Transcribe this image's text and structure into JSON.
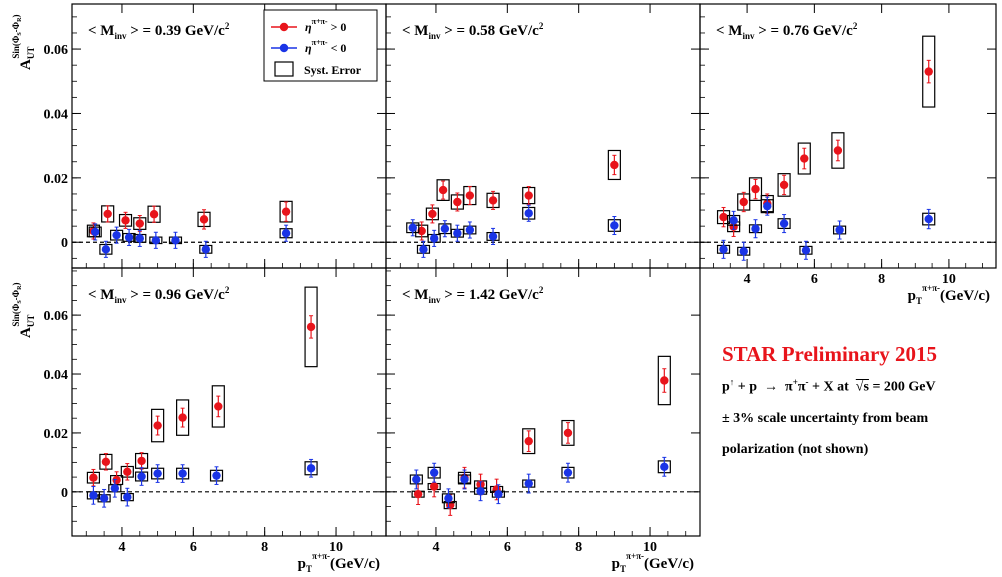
{
  "colors": {
    "positive": "#e8141b",
    "negative": "#1a34e6",
    "box": "#000000",
    "preliminary": "#e8141b"
  },
  "legend": {
    "pos_label": "η^{π+π-} > 0",
    "neg_label": "η^{π+π-} < 0",
    "syst_label": "Syst. Error"
  },
  "ylabel": "A_UT^{Sin(Φ_S-Φ_R)}",
  "xlabel": "p_T^{π+π-}(GeV/c)",
  "info": {
    "title": "STAR Preliminary 2015",
    "reaction": "p↑ + p → π+π- + X at √s = 200 GeV",
    "scale": "± 3% scale uncertainty from beam",
    "polarization": "polarization (not shown)"
  },
  "chart_data": [
    {
      "type": "scatter",
      "title": "< M_inv > = 0.39 GeV/c²",
      "xlim": [
        2.6,
        11.4
      ],
      "ylim": [
        -0.008,
        0.074
      ],
      "xticks": [
        4,
        6,
        8,
        10
      ],
      "yticks": [
        0,
        0.02,
        0.04,
        0.06
      ],
      "series": [
        {
          "name": "η^{π+π-} > 0",
          "x": [
            3.2,
            3.6,
            4.1,
            4.5,
            4.9,
            6.3,
            8.6
          ],
          "y": [
            0.0035,
            0.0088,
            0.0068,
            0.0058,
            0.0087,
            0.0071,
            0.0095
          ],
          "err": [
            0.0025,
            0.0025,
            0.0025,
            0.0025,
            0.0025,
            0.003,
            0.003
          ],
          "syst": [
            0.0018,
            0.0025,
            0.0018,
            0.0018,
            0.0025,
            0.0022,
            0.0032
          ]
        },
        {
          "name": "η^{π+π-} < 0",
          "x": [
            3.25,
            3.55,
            3.85,
            4.2,
            4.5,
            4.95,
            5.5,
            6.35,
            8.6
          ],
          "y": [
            0.0032,
            -0.0022,
            0.0022,
            0.0015,
            0.0012,
            0.0006,
            0.0006,
            -0.0022,
            0.0028
          ],
          "err": [
            0.0025,
            0.0025,
            0.0025,
            0.0025,
            0.0025,
            0.0025,
            0.0025,
            0.0025,
            0.0025
          ],
          "syst": [
            0.0015,
            0.0015,
            0.0015,
            0.0012,
            0.0012,
            0.001,
            0.001,
            0.0012,
            0.0014
          ]
        }
      ]
    },
    {
      "type": "scatter",
      "title": "< M_inv > = 0.58 GeV/c²",
      "xlim": [
        2.6,
        11.4
      ],
      "ylim": [
        -0.008,
        0.074
      ],
      "xticks": [
        4,
        6,
        8,
        10
      ],
      "yticks": [
        0,
        0.02,
        0.04,
        0.06
      ],
      "series": [
        {
          "name": "η^{π+π-} > 0",
          "x": [
            3.6,
            3.9,
            4.2,
            4.6,
            4.95,
            5.6,
            6.6,
            9.0
          ],
          "y": [
            0.0035,
            0.0088,
            0.0162,
            0.0125,
            0.0145,
            0.013,
            0.0145,
            0.024
          ],
          "err": [
            0.0028,
            0.0028,
            0.0028,
            0.0028,
            0.0028,
            0.0028,
            0.0028,
            0.003
          ],
          "syst": [
            0.0018,
            0.0018,
            0.0032,
            0.0022,
            0.0028,
            0.0022,
            0.0025,
            0.0045
          ]
        },
        {
          "name": "η^{π+π-} < 0",
          "x": [
            3.35,
            3.65,
            3.95,
            4.25,
            4.6,
            4.95,
            5.6,
            6.6,
            9.0
          ],
          "y": [
            0.0045,
            -0.0022,
            0.0012,
            0.0042,
            0.0028,
            0.0038,
            0.0018,
            0.009,
            0.0052
          ],
          "err": [
            0.0025,
            0.0025,
            0.0025,
            0.0025,
            0.0025,
            0.0025,
            0.0025,
            0.0025,
            0.0028
          ],
          "syst": [
            0.0015,
            0.0012,
            0.0012,
            0.0015,
            0.0012,
            0.0012,
            0.0012,
            0.0018,
            0.0018
          ]
        }
      ]
    },
    {
      "type": "scatter",
      "title": "< M_inv > = 0.76 GeV/c²",
      "xlim": [
        2.6,
        11.4
      ],
      "ylim": [
        -0.008,
        0.074
      ],
      "xticks": [
        4,
        6,
        8,
        10
      ],
      "yticks": [
        0,
        0.02,
        0.04,
        0.06
      ],
      "xlabel": "p_T^{π+π-}(GeV/c)",
      "series": [
        {
          "name": "η^{π+π-} > 0",
          "x": [
            3.3,
            3.6,
            3.9,
            4.25,
            4.6,
            5.1,
            5.7,
            6.7,
            9.4
          ],
          "y": [
            0.0078,
            0.0048,
            0.0125,
            0.0165,
            0.012,
            0.0178,
            0.026,
            0.0285,
            0.053
          ],
          "err": [
            0.003,
            0.003,
            0.003,
            0.003,
            0.003,
            0.003,
            0.0032,
            0.0032,
            0.0035
          ],
          "syst": [
            0.002,
            0.0015,
            0.0025,
            0.0035,
            0.0025,
            0.0035,
            0.0048,
            0.0055,
            0.011
          ]
        },
        {
          "name": "η^{π+π-} < 0",
          "x": [
            3.3,
            3.6,
            3.9,
            4.25,
            4.6,
            5.1,
            5.75,
            6.75,
            9.4
          ],
          "y": [
            -0.0022,
            0.0068,
            -0.0028,
            0.0042,
            0.0112,
            0.0058,
            -0.0025,
            0.0038,
            0.0072
          ],
          "err": [
            0.0028,
            0.0028,
            0.0028,
            0.0028,
            0.0028,
            0.0028,
            0.0028,
            0.0028,
            0.003
          ],
          "syst": [
            0.0012,
            0.0015,
            0.0012,
            0.0012,
            0.002,
            0.0015,
            0.0012,
            0.0012,
            0.0018
          ]
        }
      ]
    },
    {
      "type": "scatter",
      "title": "< M_inv > = 0.96 GeV/c²",
      "xlim": [
        2.6,
        11.4
      ],
      "ylim": [
        -0.015,
        0.076
      ],
      "xticks": [
        4,
        6,
        8,
        10
      ],
      "yticks": [
        0,
        0.02,
        0.04,
        0.06
      ],
      "xlabel": "p_T^{π+π-}(GeV/c)",
      "series": [
        {
          "name": "η^{π+π-} > 0",
          "x": [
            3.2,
            3.55,
            3.85,
            4.15,
            4.55,
            5.0,
            5.7,
            6.7,
            9.3
          ],
          "y": [
            0.0048,
            0.0102,
            0.004,
            0.0068,
            0.0105,
            0.0225,
            0.0252,
            0.029,
            0.056
          ],
          "err": [
            0.0028,
            0.0028,
            0.0028,
            0.0028,
            0.0028,
            0.0032,
            0.0032,
            0.0035,
            0.0038
          ],
          "syst": [
            0.0018,
            0.0025,
            0.0015,
            0.0018,
            0.0025,
            0.0055,
            0.006,
            0.007,
            0.0135
          ]
        },
        {
          "name": "η^{π+π-} < 0",
          "x": [
            3.2,
            3.5,
            3.8,
            4.15,
            4.55,
            5.0,
            5.7,
            6.65,
            9.3
          ],
          "y": [
            -0.0012,
            -0.0022,
            0.0012,
            -0.0018,
            0.0052,
            0.0062,
            0.0062,
            0.0055,
            0.008
          ],
          "err": [
            0.003,
            0.003,
            0.003,
            0.003,
            0.003,
            0.003,
            0.003,
            0.003,
            0.003
          ],
          "syst": [
            0.0012,
            0.0012,
            0.0012,
            0.0012,
            0.0015,
            0.0018,
            0.0018,
            0.0018,
            0.0022
          ]
        }
      ]
    },
    {
      "type": "scatter",
      "title": "< M_inv > = 1.42 GeV/c²",
      "xlim": [
        2.6,
        11.4
      ],
      "ylim": [
        -0.015,
        0.076
      ],
      "xticks": [
        4,
        6,
        8,
        10
      ],
      "yticks": [
        0,
        0.02,
        0.04,
        0.06
      ],
      "xlabel": "p_T^{π+π-}(GeV/c)",
      "series": [
        {
          "name": "η^{π+π-} > 0",
          "x": [
            3.5,
            3.95,
            4.4,
            4.8,
            5.25,
            5.7,
            6.6,
            7.7,
            10.4
          ],
          "y": [
            -0.0008,
            0.0018,
            -0.0045,
            0.0048,
            0.0025,
            0.0008,
            0.0172,
            0.02,
            0.0378
          ],
          "err": [
            0.0035,
            0.0035,
            0.0035,
            0.0035,
            0.0035,
            0.0035,
            0.0035,
            0.0035,
            0.004
          ],
          "syst": [
            0.001,
            0.001,
            0.0012,
            0.0018,
            0.0012,
            0.001,
            0.0042,
            0.0042,
            0.0082
          ]
        },
        {
          "name": "η^{π+π-} < 0",
          "x": [
            3.45,
            3.95,
            4.35,
            4.8,
            5.25,
            5.75,
            6.6,
            7.7,
            10.4
          ],
          "y": [
            0.0042,
            0.0065,
            -0.0022,
            0.0042,
            0.0002,
            -0.0008,
            0.0028,
            0.0065,
            0.0085
          ],
          "err": [
            0.0032,
            0.0032,
            0.0032,
            0.0032,
            0.0032,
            0.0032,
            0.0032,
            0.0032,
            0.0032
          ],
          "syst": [
            0.0015,
            0.0018,
            0.0015,
            0.0015,
            0.001,
            0.001,
            0.0012,
            0.0018,
            0.002
          ]
        }
      ]
    }
  ]
}
